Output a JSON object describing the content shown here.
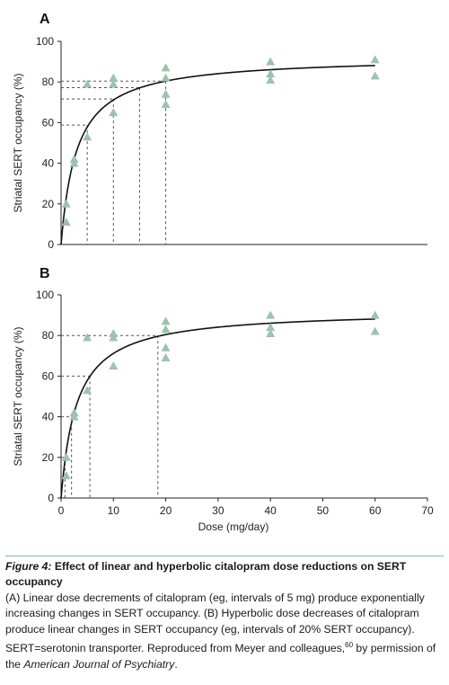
{
  "chart_data": [
    {
      "type": "scatter",
      "panel_label": "A",
      "xlabel": "",
      "ylabel": "Striatal SERT occupancy (%)",
      "xlim": [
        0,
        70
      ],
      "ylim": [
        0,
        100
      ],
      "x_ticks": [],
      "y_ticks": [
        0,
        20,
        40,
        60,
        80,
        100
      ],
      "grid": false,
      "marker": "triangle",
      "marker_color": "#9cc3ad",
      "points": [
        {
          "x": 1,
          "y": 20
        },
        {
          "x": 1,
          "y": 11
        },
        {
          "x": 2.5,
          "y": 42
        },
        {
          "x": 2.5,
          "y": 40
        },
        {
          "x": 5,
          "y": 79
        },
        {
          "x": 5,
          "y": 53
        },
        {
          "x": 10,
          "y": 82
        },
        {
          "x": 10,
          "y": 79
        },
        {
          "x": 10,
          "y": 65
        },
        {
          "x": 20,
          "y": 87
        },
        {
          "x": 20,
          "y": 82
        },
        {
          "x": 20,
          "y": 74
        },
        {
          "x": 20,
          "y": 69
        },
        {
          "x": 40,
          "y": 90
        },
        {
          "x": 40,
          "y": 84
        },
        {
          "x": 40,
          "y": 81
        },
        {
          "x": 60,
          "y": 91
        },
        {
          "x": 60,
          "y": 83
        }
      ],
      "fit_curve": {
        "model": "hyperbolic",
        "emax": 92.5,
        "ed50": 3
      },
      "reference_lines": [
        {
          "x": 5,
          "y": 58.8
        },
        {
          "x": 10,
          "y": 71.6
        },
        {
          "x": 15,
          "y": 77.2
        },
        {
          "x": 20,
          "y": 80.4
        }
      ]
    },
    {
      "type": "scatter",
      "panel_label": "B",
      "xlabel": "Dose (mg/day)",
      "ylabel": "Striatal SERT occupancy (%)",
      "xlim": [
        0,
        70
      ],
      "ylim": [
        0,
        100
      ],
      "x_ticks": [
        0,
        10,
        20,
        30,
        40,
        50,
        60,
        70
      ],
      "y_ticks": [
        0,
        20,
        40,
        60,
        80,
        100
      ],
      "grid": false,
      "marker": "triangle",
      "marker_color": "#9cc3ad",
      "points": [
        {
          "x": 1,
          "y": 20
        },
        {
          "x": 1,
          "y": 11
        },
        {
          "x": 2.5,
          "y": 42
        },
        {
          "x": 2.5,
          "y": 40
        },
        {
          "x": 5,
          "y": 79
        },
        {
          "x": 5,
          "y": 53
        },
        {
          "x": 10,
          "y": 81
        },
        {
          "x": 10,
          "y": 79
        },
        {
          "x": 10,
          "y": 65
        },
        {
          "x": 20,
          "y": 87
        },
        {
          "x": 20,
          "y": 83
        },
        {
          "x": 20,
          "y": 74
        },
        {
          "x": 20,
          "y": 69
        },
        {
          "x": 40,
          "y": 90
        },
        {
          "x": 40,
          "y": 84
        },
        {
          "x": 40,
          "y": 81
        },
        {
          "x": 60,
          "y": 90
        },
        {
          "x": 60,
          "y": 82
        }
      ],
      "fit_curve": {
        "model": "hyperbolic",
        "emax": 92.5,
        "ed50": 3
      },
      "reference_lines": [
        {
          "x": 0.75,
          "y": 20
        },
        {
          "x": 2,
          "y": 40
        },
        {
          "x": 5.5,
          "y": 60
        },
        {
          "x": 18.5,
          "y": 80
        }
      ]
    }
  ],
  "caption": {
    "figure_label": "Figure 4:",
    "title": " Effect of linear and hyperbolic citalopram dose reductions on SERT occupancy",
    "body": "(A) Linear dose decrements of citalopram (eg, intervals of 5 mg) produce exponentially increasing changes in SERT occupancy. (B) Hyperbolic dose decreases of citalopram produce linear changes in SERT occupancy (eg, intervals of 20% SERT occupancy). SERT=serotonin transporter. Reproduced from Meyer and colleagues,",
    "ref": "60",
    "permission": " by permission of the ",
    "journal": "American Journal of Psychiatry",
    "end": "."
  }
}
